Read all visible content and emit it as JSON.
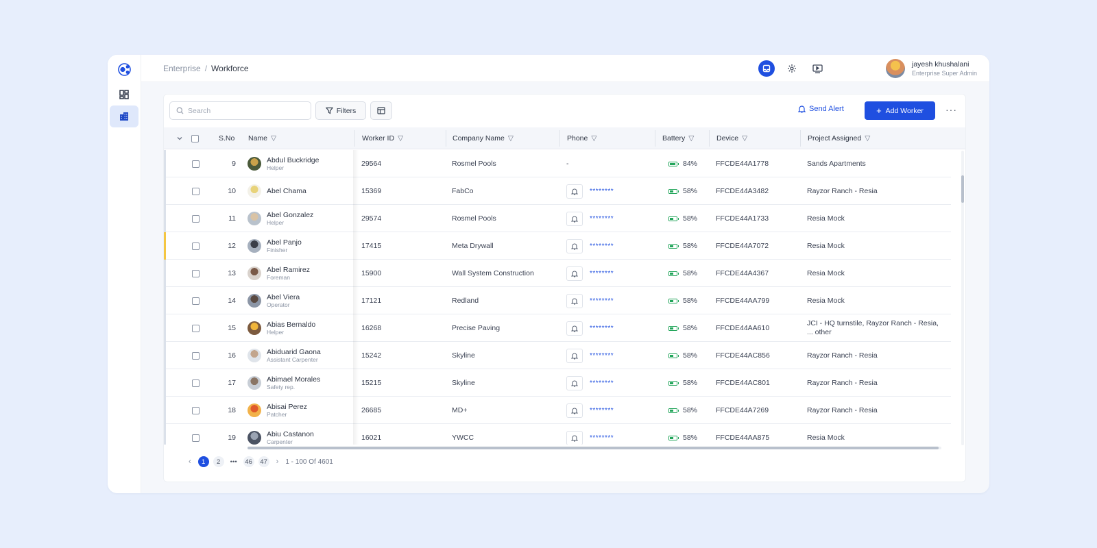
{
  "breadcrumb": {
    "root": "Enterprise",
    "separator": "/",
    "current": "Workforce"
  },
  "user": {
    "name": "jayesh khushalani",
    "role": "Enterprise Super Admin"
  },
  "toolbar": {
    "search_placeholder": "Search",
    "filters_label": "Filters",
    "send_alert_label": "Send Alert",
    "add_worker_label": "Add Worker"
  },
  "columns": {
    "sno": "S.No",
    "name": "Name",
    "worker_id": "Worker ID",
    "company": "Company Name",
    "phone": "Phone",
    "battery": "Battery",
    "device": "Device",
    "project": "Project Assigned"
  },
  "rows": [
    {
      "sno": "9",
      "name": "Abdul Buckridge",
      "role": "Helper",
      "worker_id": "29564",
      "company": "Rosmel Pools",
      "phone": "-",
      "battery": "84%",
      "battery_level": 0.84,
      "device": "FFCDE44A1778",
      "project": "Sands Apartments"
    },
    {
      "sno": "10",
      "name": "Abel Chama",
      "role": "",
      "worker_id": "15369",
      "company": "FabCo",
      "phone": "********",
      "battery": "58%",
      "battery_level": 0.58,
      "device": "FFCDE44A3482",
      "project": "Rayzor Ranch - Resia"
    },
    {
      "sno": "11",
      "name": "Abel Gonzalez",
      "role": "Helper",
      "worker_id": "29574",
      "company": "Rosmel Pools",
      "phone": "********",
      "battery": "58%",
      "battery_level": 0.58,
      "device": "FFCDE44A1733",
      "project": "Resia Mock"
    },
    {
      "sno": "12",
      "name": "Abel Panjo",
      "role": "Finisher",
      "worker_id": "17415",
      "company": "Meta Drywall",
      "phone": "********",
      "battery": "58%",
      "battery_level": 0.58,
      "device": "FFCDE44A7072",
      "project": "Resia Mock",
      "flag": "warn"
    },
    {
      "sno": "13",
      "name": "Abel Ramirez",
      "role": "Foreman",
      "worker_id": "15900",
      "company": "Wall System Construction",
      "phone": "********",
      "battery": "58%",
      "battery_level": 0.58,
      "device": "FFCDE44A4367",
      "project": "Resia Mock"
    },
    {
      "sno": "14",
      "name": "Abel Viera",
      "role": "Operator",
      "worker_id": "17121",
      "company": "Redland",
      "phone": "********",
      "battery": "58%",
      "battery_level": 0.58,
      "device": "FFCDE44AA799",
      "project": "Resia Mock"
    },
    {
      "sno": "15",
      "name": "Abias Bernaldo",
      "role": "Helper",
      "worker_id": "16268",
      "company": "Precise Paving",
      "phone": "********",
      "battery": "58%",
      "battery_level": 0.58,
      "device": "FFCDE44AA610",
      "project": "JCI - HQ turnstile,  Rayzor Ranch - Resia, ... other"
    },
    {
      "sno": "16",
      "name": "Abiduarid Gaona",
      "role": "Assistant Carpenter",
      "worker_id": "15242",
      "company": "Skyline",
      "phone": "********",
      "battery": "58%",
      "battery_level": 0.58,
      "device": "FFCDE44AC856",
      "project": "Rayzor Ranch - Resia"
    },
    {
      "sno": "17",
      "name": "Abimael Morales",
      "role": "Safety rep.",
      "worker_id": "15215",
      "company": "Skyline",
      "phone": "********",
      "battery": "58%",
      "battery_level": 0.58,
      "device": "FFCDE44AC801",
      "project": "Rayzor Ranch - Resia"
    },
    {
      "sno": "18",
      "name": "Abisai Perez",
      "role": "Patcher",
      "worker_id": "26685",
      "company": "MD+",
      "phone": "********",
      "battery": "58%",
      "battery_level": 0.58,
      "device": "FFCDE44A7269",
      "project": "Rayzor Ranch - Resia"
    },
    {
      "sno": "19",
      "name": "Abiu Castanon",
      "role": "Carpenter",
      "worker_id": "16021",
      "company": "YWCC",
      "phone": "********",
      "battery": "58%",
      "battery_level": 0.58,
      "device": "FFCDE44AA875",
      "project": "Resia Mock"
    }
  ],
  "pagination": {
    "pages": [
      "1",
      "2",
      "•••",
      "46",
      "47"
    ],
    "current": "1",
    "range": "1 - 100 Of 4601"
  },
  "colors": {
    "primary": "#1f4fe0",
    "battery": "#22a55a",
    "warn": "#f4c642",
    "background": "#e7eefc"
  }
}
